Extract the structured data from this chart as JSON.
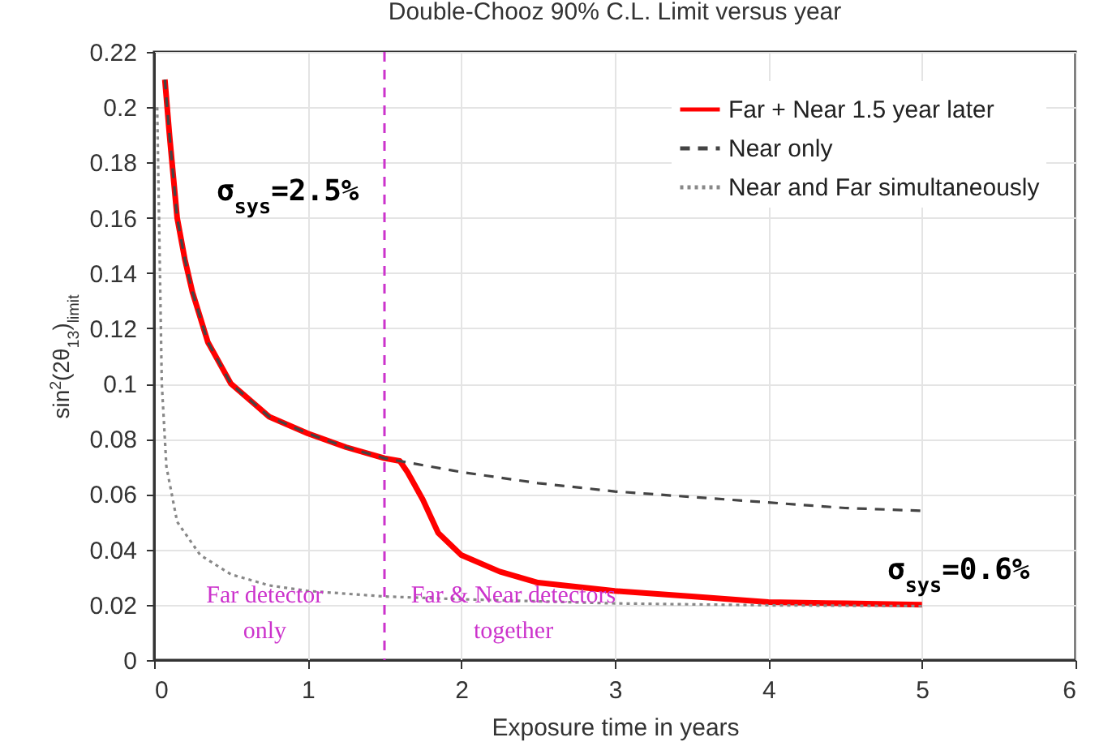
{
  "chart_data": {
    "type": "line",
    "title": "Double-Chooz 90% C.L. Limit versus year",
    "xlabel": "Exposure time in years",
    "ylabel": "sin$^{2}$(2θ$_{13}$)$_{limit}$",
    "xlim": [
      0,
      6
    ],
    "xticks": [
      0,
      1,
      2,
      3,
      4,
      5,
      6
    ],
    "ylim": [
      0,
      0.22
    ],
    "yticks": [
      0,
      0.02,
      0.04,
      0.06,
      0.08,
      0.1,
      0.12,
      0.14,
      0.16,
      0.18,
      0.2,
      0.22
    ],
    "grid": true,
    "legend": "top right",
    "series": [
      {
        "name": "Far + Near 1.5 year later",
        "color": "#ff0000",
        "line_style": "solid",
        "x": [
          0.07,
          0.1,
          0.15,
          0.2,
          0.25,
          0.35,
          0.5,
          0.75,
          1.0,
          1.25,
          1.5,
          1.6,
          1.65,
          1.75,
          1.85,
          2.0,
          2.25,
          2.5,
          3.0,
          3.5,
          4.0,
          4.5,
          5.0
        ],
        "values": [
          0.21,
          0.19,
          0.16,
          0.145,
          0.133,
          0.115,
          0.1,
          0.088,
          0.082,
          0.077,
          0.073,
          0.072,
          0.068,
          0.058,
          0.046,
          0.038,
          0.032,
          0.028,
          0.025,
          0.023,
          0.021,
          0.0205,
          0.02
        ]
      },
      {
        "name": "Near only",
        "color": "#444444",
        "line_style": "dashed",
        "x": [
          0.07,
          0.1,
          0.15,
          0.2,
          0.25,
          0.35,
          0.5,
          0.75,
          1.0,
          1.25,
          1.5,
          1.6,
          2.0,
          2.5,
          3.0,
          3.5,
          4.0,
          4.5,
          5.0
        ],
        "values": [
          0.21,
          0.19,
          0.16,
          0.145,
          0.133,
          0.115,
          0.1,
          0.088,
          0.082,
          0.077,
          0.073,
          0.072,
          0.068,
          0.064,
          0.061,
          0.059,
          0.057,
          0.055,
          0.054
        ]
      },
      {
        "name": "Near and Far simultaneously",
        "color": "#888888",
        "line_style": "dotted",
        "x": [
          0.02,
          0.05,
          0.08,
          0.15,
          0.3,
          0.5,
          0.75,
          1.0,
          1.5,
          2.0,
          3.0,
          4.0,
          5.0
        ],
        "values": [
          0.2,
          0.1,
          0.07,
          0.05,
          0.038,
          0.031,
          0.027,
          0.025,
          0.023,
          0.022,
          0.0205,
          0.0198,
          0.0195
        ]
      }
    ],
    "ref_lines": [
      {
        "axis": "x",
        "value": 1.5,
        "color": "#cc33cc",
        "line_style": "dashed"
      }
    ],
    "annotations": [
      "σ$_{sys}$=2.5%",
      "σ$_{sys}$=0.6%",
      "Far detector\nonly",
      "Far & Near detectors\ntogether"
    ]
  }
}
